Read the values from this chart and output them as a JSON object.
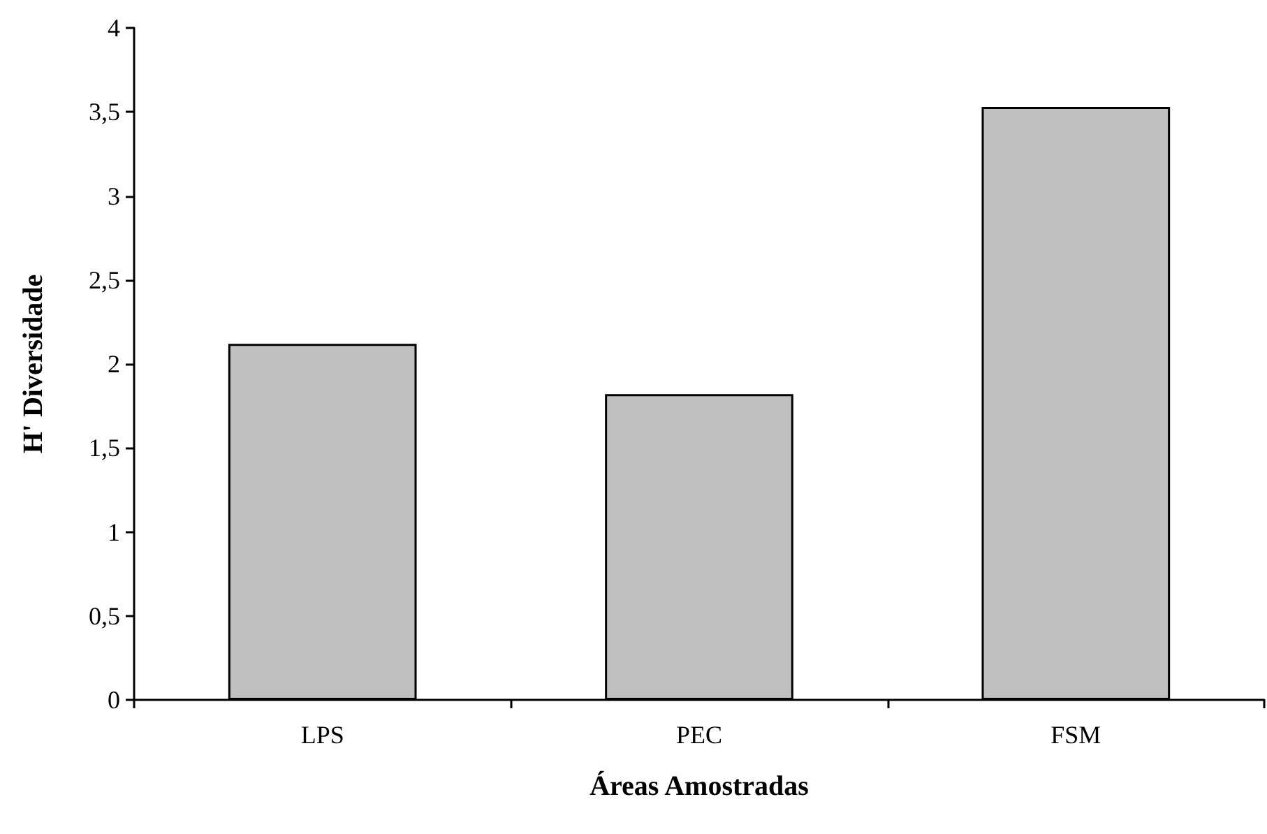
{
  "chart_data": {
    "type": "bar",
    "xlabel": "Áreas Amostradas",
    "ylabel": "H' Diversidade",
    "categories": [
      "LPS",
      "PEC",
      "FSM"
    ],
    "values": [
      2.12,
      1.82,
      3.53
    ],
    "color": "#c0c0c0",
    "ylim": [
      0,
      4
    ],
    "yticks": [
      0,
      {
        "value": 0.5,
        "label": "0,5"
      },
      1,
      {
        "value": 1.5,
        "label": "1,5"
      },
      2,
      {
        "value": 2.5,
        "label": "2,5"
      },
      3,
      {
        "value": 3.5,
        "label": "3,5"
      },
      4
    ],
    "grid": false
  }
}
